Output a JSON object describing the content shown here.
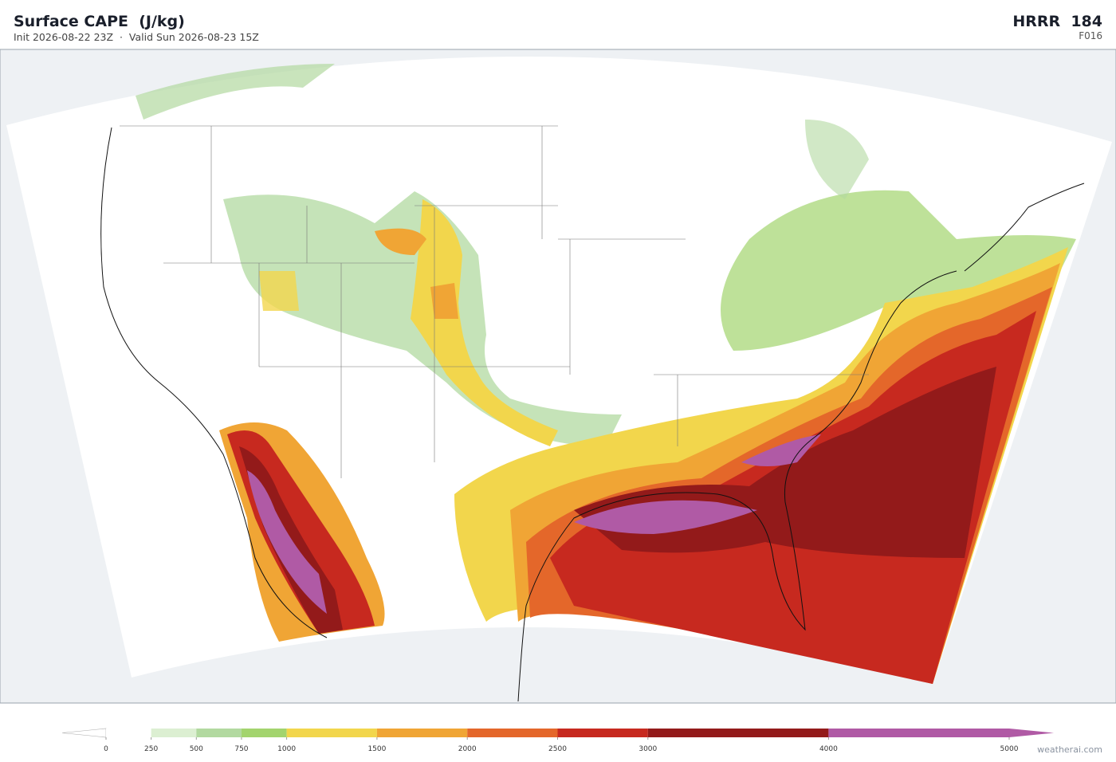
{
  "header": {
    "title": "Surface CAPE  (J/kg)",
    "subtitle": "Init 2026-08-22 23Z  ·  Valid Sun 2026-08-23 15Z",
    "model": "HRRR  184",
    "forecast_hour": "F016"
  },
  "colorbar": {
    "levels": [
      0,
      250,
      500,
      750,
      1000,
      1500,
      2000,
      2500,
      3000,
      4000,
      5000
    ],
    "colors": [
      "#ffffff",
      "#dcefd2",
      "#b2d9a0",
      "#a3d46e",
      "#f2d64c",
      "#f0a535",
      "#e4672a",
      "#c7291f",
      "#931a1a",
      "#b05aa5"
    ]
  },
  "watermark": "weatherai.com"
}
